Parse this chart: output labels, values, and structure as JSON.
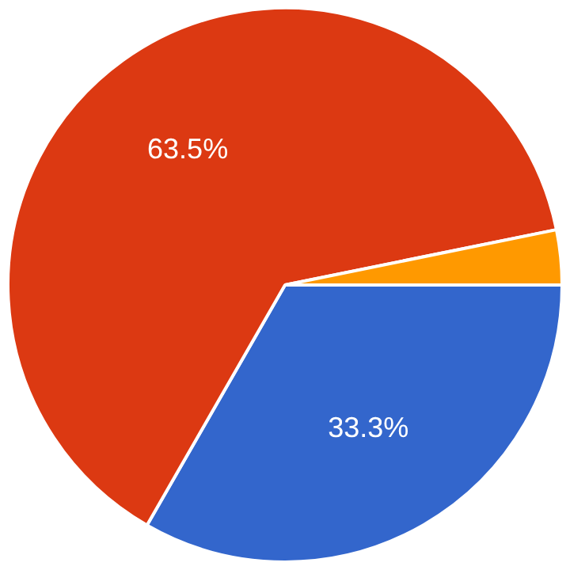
{
  "chart_data": {
    "type": "pie",
    "categories": [
      null,
      null,
      null
    ],
    "values": [
      33.3,
      63.5,
      3.2
    ],
    "colors": [
      "#3366cc",
      "#dc3912",
      "#ff9900"
    ],
    "value_labels": [
      "33.3%",
      "63.5%",
      null
    ],
    "legend": false
  }
}
